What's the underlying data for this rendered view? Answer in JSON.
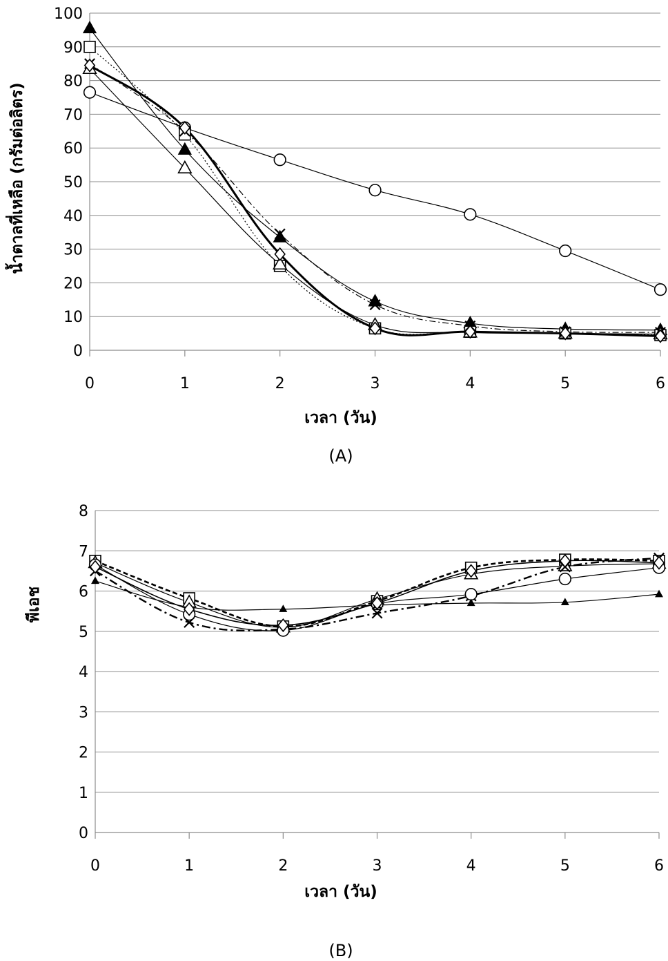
{
  "chart_data": [
    {
      "type": "line",
      "panel_label": "(A)",
      "xlabel": "เวลา (วัน)",
      "ylabel": "น้ำตาลที่เหลือ (กรัมต่อลิตร)",
      "x": [
        0,
        1,
        2,
        3,
        4,
        5,
        6
      ],
      "xlim": [
        0,
        6
      ],
      "ylim": [
        0,
        100
      ],
      "yticks": [
        0,
        10,
        20,
        30,
        40,
        50,
        60,
        70,
        80,
        90,
        100
      ],
      "grid": true,
      "series": [
        {
          "marker": "circle",
          "line": "solid-thin",
          "values": [
            76.5,
            66,
            56.5,
            47.5,
            40.3,
            29.5,
            18
          ]
        },
        {
          "marker": "filled-triangle",
          "line": "solid-thin",
          "values": [
            95.5,
            59.5,
            33.5,
            14.5,
            8,
            6.3,
            6
          ]
        },
        {
          "marker": "square",
          "line": "dotted",
          "values": [
            90,
            64,
            25,
            6.5,
            5.5,
            5,
            4.5
          ]
        },
        {
          "marker": "open-triangle",
          "line": "solid-thin",
          "values": [
            83.5,
            54,
            25.5,
            7.5,
            5.3,
            5,
            4.8
          ]
        },
        {
          "marker": "cross",
          "line": "dash-dot",
          "values": [
            85,
            65,
            34.5,
            13.5,
            7.2,
            5.5,
            5.3
          ]
        },
        {
          "marker": "diamond",
          "line": "solid-thick",
          "values": [
            84.5,
            66,
            28.5,
            6.5,
            5.5,
            5,
            4.2
          ]
        }
      ]
    },
    {
      "type": "line",
      "panel_label": "(B)",
      "xlabel": "เวลา (วัน)",
      "ylabel": "พีเอช",
      "x": [
        0,
        1,
        2,
        3,
        4,
        5,
        6
      ],
      "xlim": [
        0,
        6
      ],
      "ylim": [
        0,
        8
      ],
      "yticks": [
        0,
        1,
        2,
        3,
        4,
        5,
        6,
        7,
        8
      ],
      "grid": true,
      "series": [
        {
          "marker": "square",
          "line": "dashed-thick",
          "values": [
            6.75,
            5.82,
            5.12,
            5.75,
            6.58,
            6.78,
            6.75
          ]
        },
        {
          "marker": "open-triangle",
          "line": "solid-thin",
          "values": [
            6.7,
            5.72,
            5.1,
            5.8,
            6.42,
            6.62,
            6.68
          ]
        },
        {
          "marker": "cross",
          "line": "dash-dot-thick",
          "values": [
            6.5,
            5.22,
            5.05,
            5.45,
            5.88,
            6.6,
            6.82
          ]
        },
        {
          "marker": "circle",
          "line": "solid-thin",
          "values": [
            6.65,
            5.42,
            5.02,
            5.68,
            5.92,
            6.3,
            6.58
          ]
        },
        {
          "marker": "filled-triangle-small",
          "line": "solid-thin",
          "values": [
            6.25,
            5.6,
            5.55,
            5.65,
            5.7,
            5.72,
            5.92
          ]
        },
        {
          "marker": "diamond",
          "line": "solid",
          "values": [
            6.6,
            5.55,
            5.15,
            5.7,
            6.5,
            6.75,
            6.7
          ]
        }
      ]
    }
  ]
}
